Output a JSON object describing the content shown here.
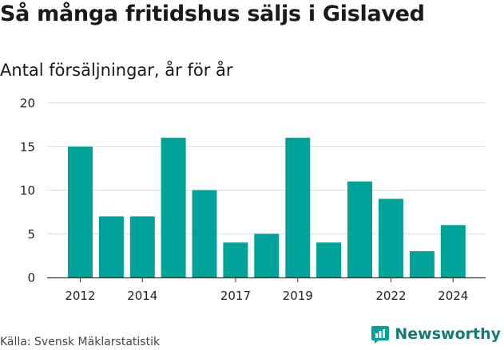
{
  "header": {
    "title": "Så många fritidshus säljs i Gislaved",
    "subtitle": "Antal försäljningar, år för år"
  },
  "footer": {
    "source": "Källa: Svensk Mäklarstatistik",
    "brand": "Newsworthy"
  },
  "colors": {
    "bar": "#00a39a",
    "grid": "#dddddd",
    "axis": "#333333",
    "brand": "#00a39a",
    "brand_text": "#167a73"
  },
  "chart_data": {
    "type": "bar",
    "categories": [
      "2012",
      "2013",
      "2014",
      "2015",
      "2016",
      "2017",
      "2018",
      "2019",
      "2020",
      "2021",
      "2022",
      "2023",
      "2024"
    ],
    "values": [
      15,
      7,
      7,
      16,
      10,
      4,
      5,
      16,
      4,
      11,
      9,
      3,
      6
    ],
    "x_tick_labels": [
      "2012",
      "2014",
      "2017",
      "2019",
      "2022",
      "2024"
    ],
    "y_ticks": [
      0,
      5,
      10,
      15,
      20
    ],
    "ylim": [
      0,
      20
    ],
    "grid": true,
    "legend": "none"
  }
}
